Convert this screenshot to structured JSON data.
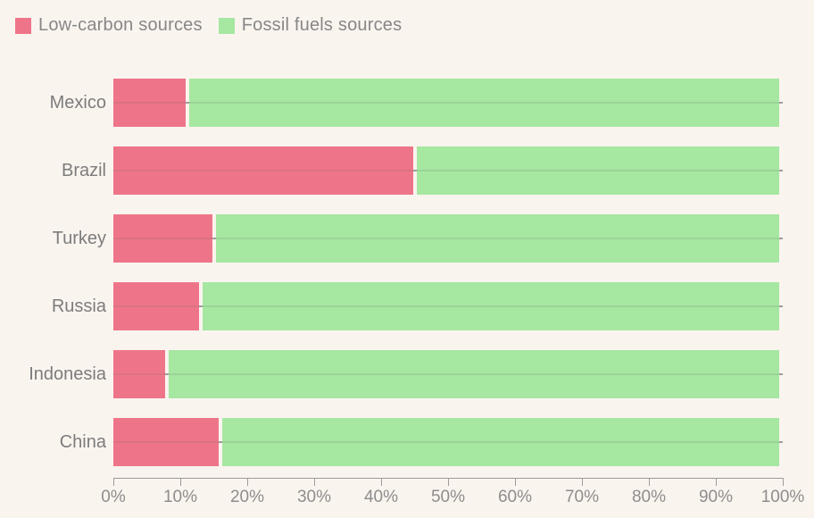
{
  "page": {
    "background_color": "#faf4ef",
    "text_color": "#8a8a8a",
    "axis_color": "#9e9b98"
  },
  "legend": {
    "items": [
      {
        "label": "Low-carbon sources",
        "color": "#ee7589"
      },
      {
        "label": "Fossil fuels sources",
        "color": "#a6e7a1"
      }
    ]
  },
  "chart_data": {
    "type": "bar",
    "orientation": "horizontal",
    "stacked": true,
    "title": "",
    "xlabel": "",
    "ylabel": "",
    "categories": [
      "Mexico",
      "Brazil",
      "Turkey",
      "Russia",
      "Indonesia",
      "China"
    ],
    "series": [
      {
        "name": "Low-carbon sources",
        "color": "#ee7589",
        "values": [
          11,
          45,
          15,
          13,
          8,
          16
        ]
      },
      {
        "name": "Fossil fuels sources",
        "color": "#a6e7a1",
        "values": [
          89,
          55,
          85,
          87,
          92,
          84
        ]
      }
    ],
    "xlim": [
      0,
      100
    ],
    "x_ticks": [
      "0%",
      "10%",
      "20%",
      "30%",
      "40%",
      "50%",
      "60%",
      "70%",
      "80%",
      "90%",
      "100%"
    ],
    "grid": "row-center-lines",
    "legend_position": "top-left"
  }
}
